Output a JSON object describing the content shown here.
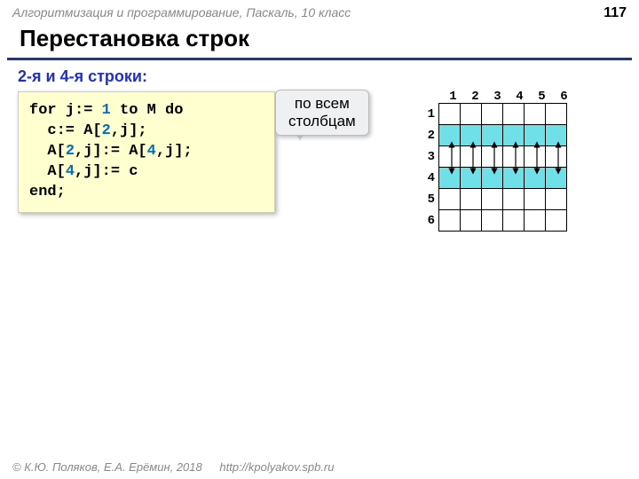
{
  "header": {
    "course": "Алгоритмизация и программирование, Паскаль, 10 класс",
    "page": "117"
  },
  "title": "Перестановка строк",
  "subtitle": "2-я и 4-я строки:",
  "callout": {
    "line1": "по всем",
    "line2": "столбцам"
  },
  "code": {
    "l1a": "for j:= ",
    "l1b": "1",
    "l1c": " to M do",
    "l2a": "  c:= A[",
    "l2b": "2",
    "l2c": ",j];",
    "l3a": "  A[",
    "l3b": "2",
    "l3c": ",j]:= A[",
    "l3d": "4",
    "l3e": ",j];",
    "l4a": "  A[",
    "l4b": "4",
    "l4c": ",j]:= c",
    "l5": "end;"
  },
  "grid": {
    "size": 6,
    "col_labels": [
      "1",
      "2",
      "3",
      "4",
      "5",
      "6"
    ],
    "row_labels": [
      "1",
      "2",
      "3",
      "4",
      "5",
      "6"
    ],
    "highlight_rows": [
      2,
      4
    ],
    "cell_size": 25,
    "highlight_color": "#70e0e8",
    "border_color": "#000000",
    "arrow_color": "#000000"
  },
  "footer": {
    "copyright": "© К.Ю. Поляков, Е.А. Ерёмин, 2018",
    "url": "http://kpolyakov.spb.ru"
  }
}
